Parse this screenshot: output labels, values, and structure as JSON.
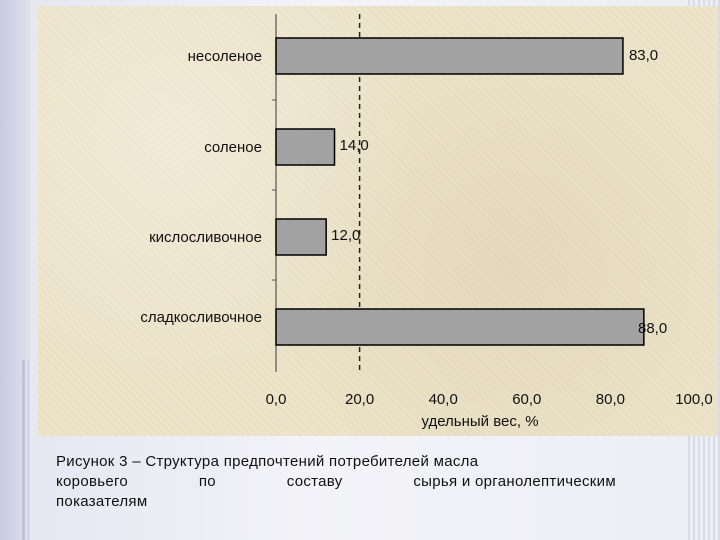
{
  "chart_data": {
    "type": "bar",
    "orientation": "horizontal",
    "categories": [
      "несоленое",
      "соленое",
      "кислосливочное",
      "сладкосливочное"
    ],
    "values": [
      83.0,
      14.0,
      12.0,
      88.0
    ],
    "value_labels": [
      "83,0",
      "14,0",
      "12,0",
      "88,0"
    ],
    "xlabel": "удельный вес, %",
    "xlim": [
      0,
      100
    ],
    "ticks": [
      "0,0",
      "20,0",
      "40,0",
      "60,0",
      "80,0",
      "100,0"
    ],
    "tick_values": [
      0,
      20,
      40,
      60,
      80,
      100
    ],
    "reference_line": 20,
    "bar_color": "#a2a2a2",
    "panel_color": "#ece3c8"
  },
  "caption": {
    "line1": "Рисунок 3 – Структура  предпочтений  потребителей  масла",
    "line2_words": [
      "коровьего",
      "по",
      "составу",
      "сырья  и  органолептическим"
    ],
    "line3": "показателям"
  }
}
